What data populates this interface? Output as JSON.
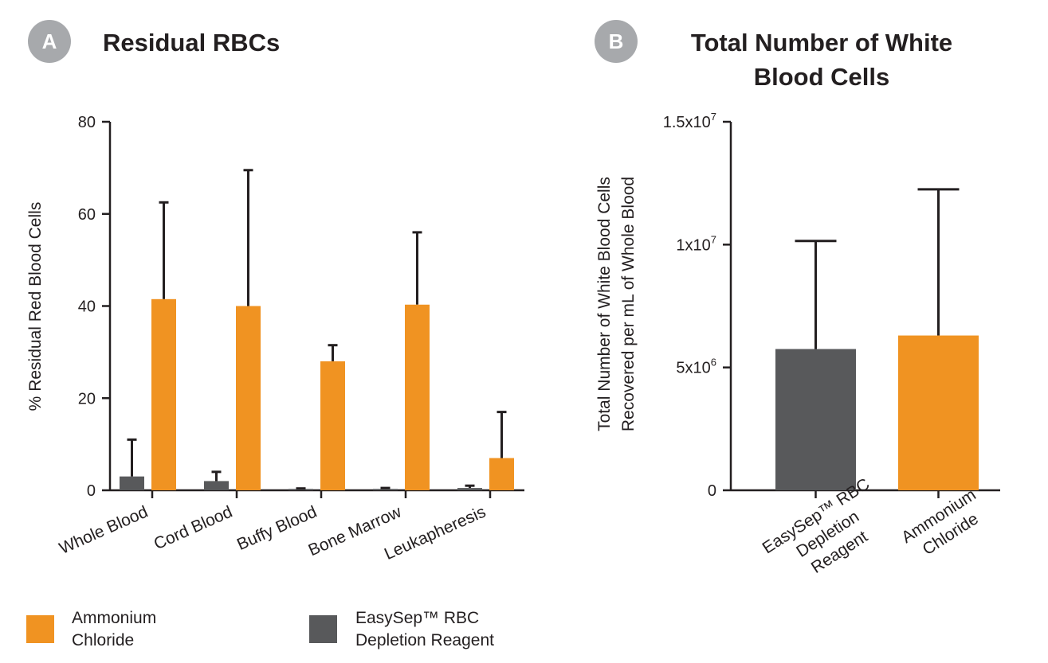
{
  "colors": {
    "ammonium": "#f09322",
    "easysep": "#58595b",
    "badge": "#a7a9ac"
  },
  "chart_data": [
    {
      "type": "bar",
      "badge": "A",
      "title": "Residual RBCs",
      "ylabel": "% Residual Red Blood Cells",
      "ylim": [
        0,
        80
      ],
      "yticks": [
        "0",
        "20",
        "40",
        "60",
        "80"
      ],
      "categories": [
        "Whole Blood",
        "Cord Blood",
        "Buffy Blood",
        "Bone Marrow",
        "Leukapheresis"
      ],
      "series": [
        {
          "name": "EasySep™ RBC Depletion Reagent",
          "values": [
            3,
            2,
            0.3,
            0.3,
            0.5
          ],
          "error_upper": [
            11,
            4,
            0.4,
            0.5,
            1
          ]
        },
        {
          "name": "Ammonium Chloride",
          "values": [
            41.5,
            40,
            28,
            40.3,
            7
          ],
          "error_upper": [
            62.5,
            69.5,
            31.5,
            56,
            17
          ]
        }
      ],
      "legend": [
        {
          "line1": "Ammonium",
          "line2": "Chloride"
        },
        {
          "line1": "EasySep™ RBC",
          "line2": "Depletion Reagent"
        }
      ]
    },
    {
      "type": "bar",
      "badge": "B",
      "title_line1": "Total Number of White",
      "title_line2": "Blood Cells",
      "ylabel_line1": "Total Number of  White Blood Cells",
      "ylabel_line2": "Recovered per mL of Whole Blood",
      "ylim": [
        0,
        15000000
      ],
      "yticks": [
        {
          "base": "0",
          "exp": ""
        },
        {
          "base": "5x10",
          "exp": "6"
        },
        {
          "base": "1x10",
          "exp": "7"
        },
        {
          "base": "1.5x10",
          "exp": "7"
        }
      ],
      "categories": [
        {
          "lines": [
            "EasySep™ RBC",
            "Depletion",
            "Reagent"
          ]
        },
        {
          "lines": [
            "Ammonium",
            "Chloride"
          ]
        }
      ],
      "values": [
        5750000,
        6300000
      ],
      "error_upper": [
        10150000,
        12250000
      ]
    }
  ]
}
